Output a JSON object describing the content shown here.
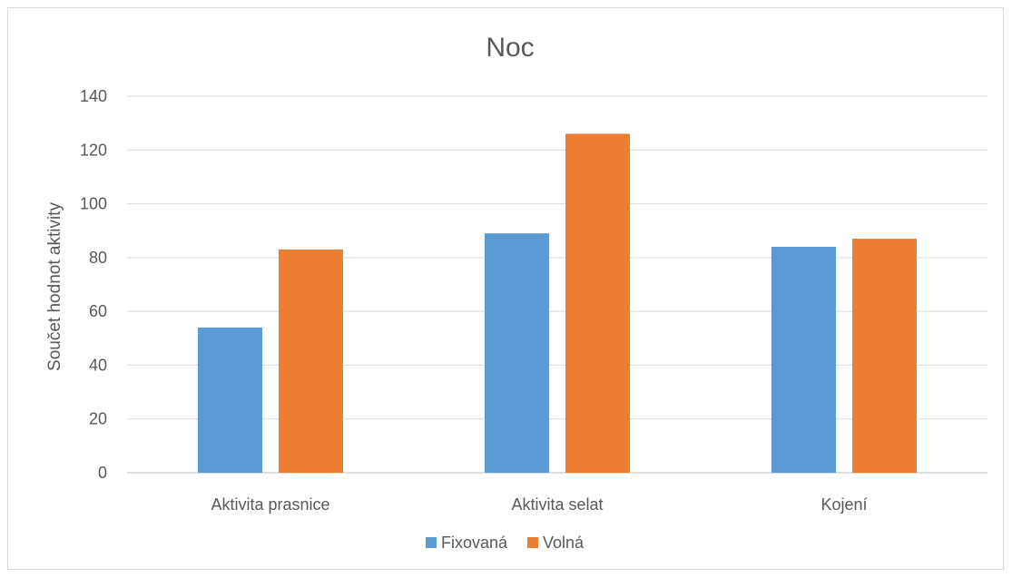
{
  "chart_data": {
    "type": "bar",
    "title": "Noc",
    "xlabel": "",
    "ylabel": "Součet hodnot aktivity",
    "categories": [
      "Aktivita prasnice",
      "Aktivita selat",
      "Kojení"
    ],
    "series": [
      {
        "name": "Fixovaná",
        "values": [
          54,
          89,
          84
        ],
        "color": "#5B9BD5"
      },
      {
        "name": "Volná",
        "values": [
          83,
          126,
          87
        ],
        "color": "#ED7D31"
      }
    ],
    "ylim": [
      0,
      140
    ],
    "yticks": [
      0,
      20,
      40,
      60,
      80,
      100,
      120,
      140
    ],
    "grid": true,
    "legend": "bottom"
  }
}
